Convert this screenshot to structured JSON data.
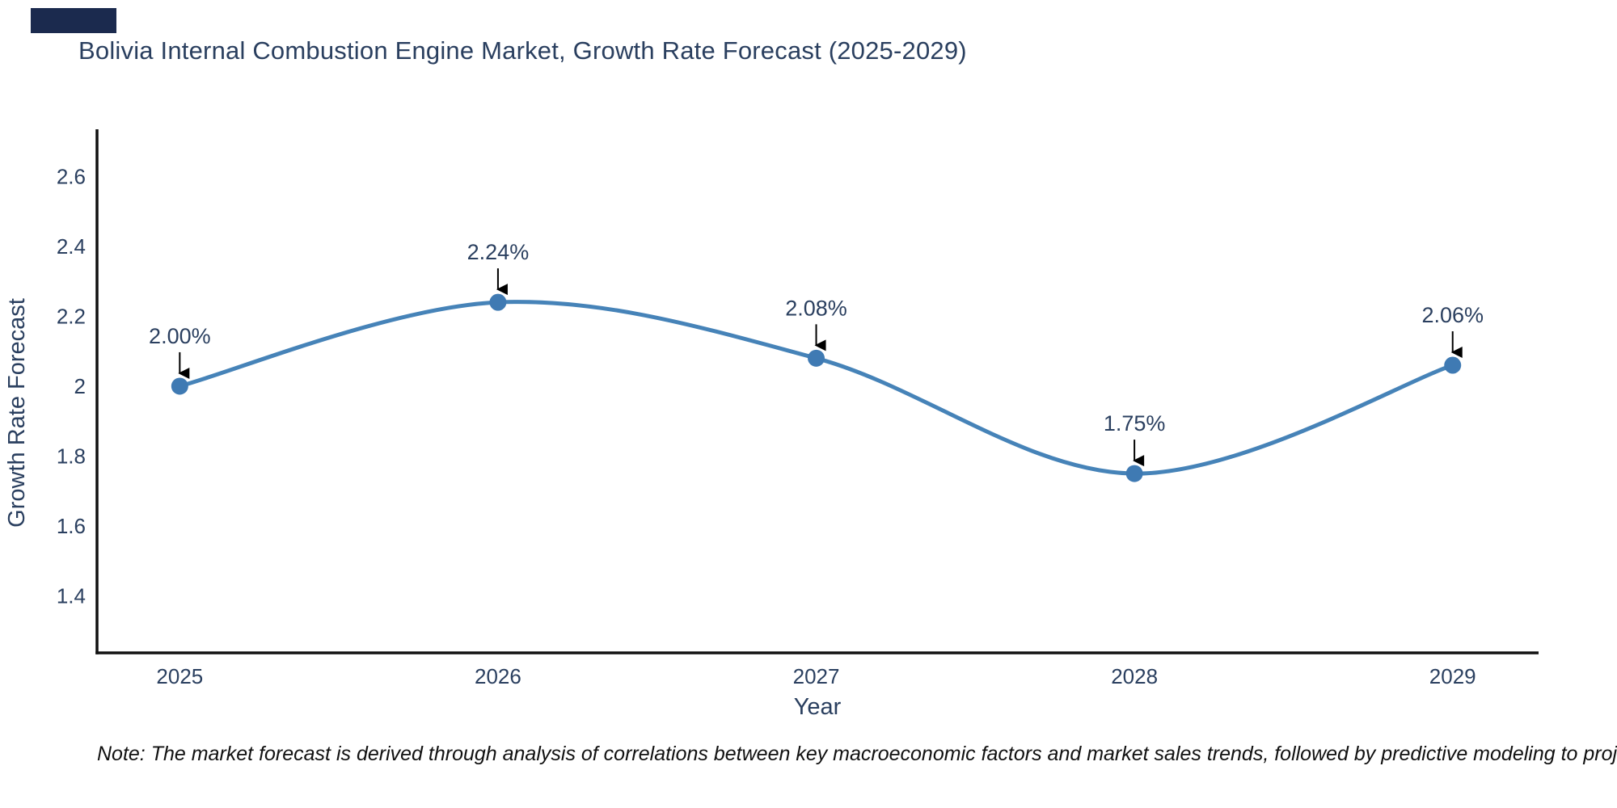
{
  "title": {
    "text": "Bolivia Internal Combustion Engine Market, Growth Rate Forecast (2025-2029)",
    "color": "#2a3f5f"
  },
  "note": {
    "text": "Note: The market forecast is derived through analysis of correlations between key macroeconomic factors and market sales trends, followed by predictive modeling to project future sales",
    "color": "#111111"
  },
  "logo": {
    "color": "#1b2a4e"
  },
  "chart_data": {
    "type": "line",
    "line_shape": "spline",
    "title": "Bolivia Internal Combustion Engine Market, Growth Rate Forecast (2025-2029)",
    "xlabel": "Year",
    "ylabel": "Growth Rate Forecast",
    "x": [
      2025,
      2026,
      2027,
      2028,
      2029
    ],
    "series": [
      {
        "name": "Growth Rate Forecast",
        "values": [
          2.0,
          2.24,
          2.08,
          1.75,
          2.06
        ]
      }
    ],
    "point_labels": [
      "2.00%",
      "2.24%",
      "2.08%",
      "1.75%",
      "2.06%"
    ],
    "yticks": [
      1.4,
      1.6,
      1.8,
      2,
      2.2,
      2.4,
      2.6
    ],
    "xlim": [
      2024.74,
      2029.27
    ],
    "ylim": [
      1.237,
      2.735
    ],
    "grid": false,
    "legend": "none",
    "colors": {
      "line": "#4683b8",
      "marker": "#3f7ab3",
      "axis": "#111111",
      "tick_text": "#2a3f5f",
      "annotation_text": "#2a3f5f",
      "arrow": "#000000"
    }
  }
}
